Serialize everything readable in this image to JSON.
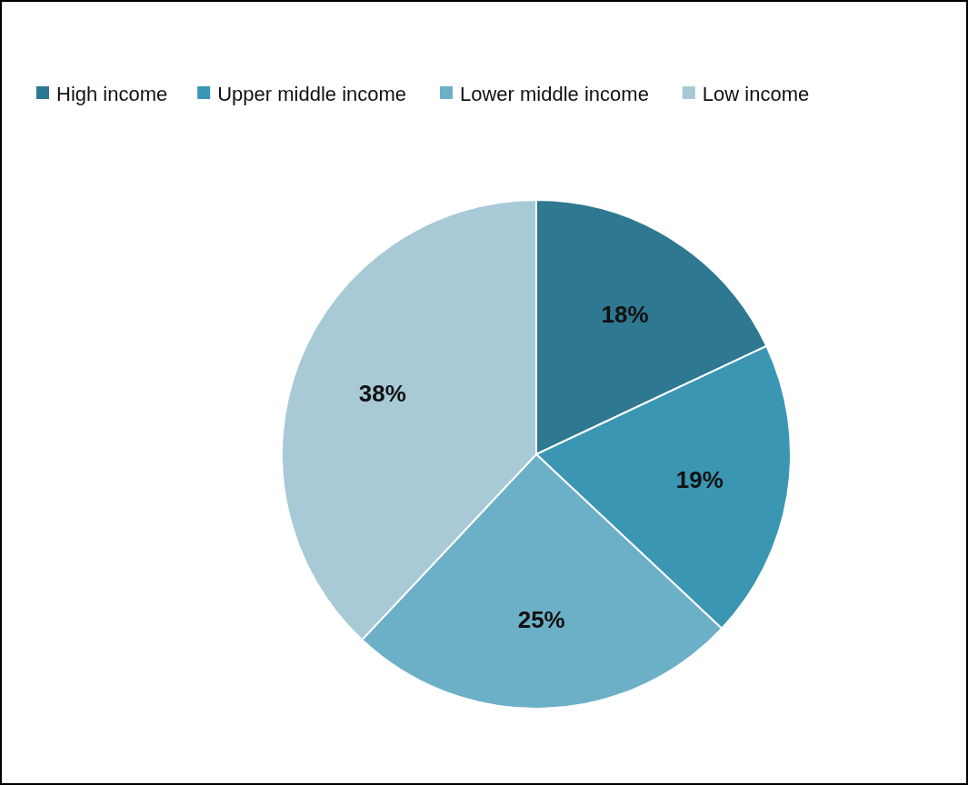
{
  "chart_data": {
    "type": "pie",
    "categories": [
      "High income",
      "Upper middle income",
      "Lower middle income",
      "Low income"
    ],
    "values": [
      18,
      19,
      25,
      38
    ],
    "value_labels": [
      "18%",
      "19%",
      "25%",
      "38%"
    ],
    "colors": [
      "#2f7891",
      "#3a96b2",
      "#6cb0c8",
      "#a8c9d6"
    ],
    "legend": "top"
  }
}
